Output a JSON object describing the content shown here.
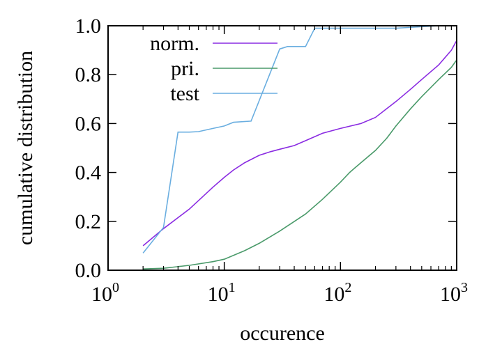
{
  "chart_data": {
    "type": "line",
    "xlabel": "occurence",
    "ylabel": "cumulative distribution",
    "xscale": "log",
    "xlim": [
      1,
      1000
    ],
    "ylim": [
      0,
      1
    ],
    "grid": false,
    "legend_position": "top-left",
    "x_ticks": [
      {
        "value": 1,
        "base": "10",
        "exp": "0"
      },
      {
        "value": 10,
        "base": "10",
        "exp": "1"
      },
      {
        "value": 100,
        "base": "10",
        "exp": "2"
      },
      {
        "value": 1000,
        "base": "10",
        "exp": "3"
      }
    ],
    "y_ticks": [
      {
        "value": 0,
        "label": "0.0"
      },
      {
        "value": 0.2,
        "label": "0.2"
      },
      {
        "value": 0.4,
        "label": "0.4"
      },
      {
        "value": 0.6,
        "label": "0.6"
      },
      {
        "value": 0.8,
        "label": "0.8"
      },
      {
        "value": 1.0,
        "label": "1.0"
      }
    ],
    "series": [
      {
        "name": "norm.",
        "color": "#8a2be2",
        "points": [
          [
            2,
            0.1
          ],
          [
            3,
            0.17
          ],
          [
            5,
            0.25
          ],
          [
            8,
            0.34
          ],
          [
            10,
            0.38
          ],
          [
            12,
            0.41
          ],
          [
            15,
            0.44
          ],
          [
            20,
            0.47
          ],
          [
            25,
            0.485
          ],
          [
            30,
            0.495
          ],
          [
            40,
            0.51
          ],
          [
            50,
            0.53
          ],
          [
            70,
            0.56
          ],
          [
            100,
            0.58
          ],
          [
            150,
            0.6
          ],
          [
            200,
            0.625
          ],
          [
            300,
            0.69
          ],
          [
            400,
            0.74
          ],
          [
            500,
            0.78
          ],
          [
            700,
            0.84
          ],
          [
            900,
            0.9
          ],
          [
            1000,
            0.94
          ]
        ]
      },
      {
        "name": "pri.",
        "color": "#4a9a6a",
        "points": [
          [
            2,
            0.005
          ],
          [
            3,
            0.008
          ],
          [
            5,
            0.02
          ],
          [
            8,
            0.035
          ],
          [
            10,
            0.045
          ],
          [
            15,
            0.08
          ],
          [
            20,
            0.11
          ],
          [
            30,
            0.16
          ],
          [
            50,
            0.23
          ],
          [
            70,
            0.29
          ],
          [
            100,
            0.36
          ],
          [
            120,
            0.4
          ],
          [
            150,
            0.44
          ],
          [
            200,
            0.49
          ],
          [
            250,
            0.54
          ],
          [
            300,
            0.59
          ],
          [
            400,
            0.66
          ],
          [
            500,
            0.71
          ],
          [
            700,
            0.78
          ],
          [
            900,
            0.83
          ],
          [
            1000,
            0.86
          ]
        ]
      },
      {
        "name": "test",
        "color": "#6aaee0",
        "points": [
          [
            2,
            0.07
          ],
          [
            3,
            0.175
          ],
          [
            4,
            0.565
          ],
          [
            5,
            0.565
          ],
          [
            6,
            0.567
          ],
          [
            8,
            0.58
          ],
          [
            10,
            0.59
          ],
          [
            12,
            0.605
          ],
          [
            17,
            0.61
          ],
          [
            30,
            0.905
          ],
          [
            35,
            0.915
          ],
          [
            50,
            0.915
          ],
          [
            60,
            0.99
          ],
          [
            100,
            0.99
          ],
          [
            300,
            0.99
          ],
          [
            700,
            1.0
          ],
          [
            1000,
            1.0
          ]
        ]
      }
    ]
  }
}
